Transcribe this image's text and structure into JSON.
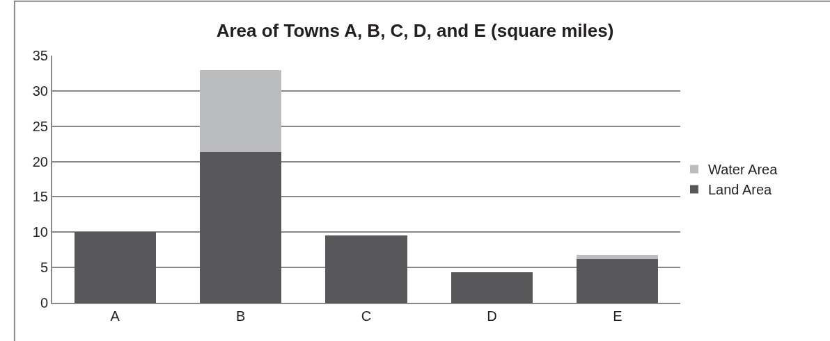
{
  "chart_data": {
    "type": "bar",
    "title": "Area of Towns A, B, C, D, and E (square miles)",
    "categories": [
      "A",
      "B",
      "C",
      "D",
      "E"
    ],
    "stacked": true,
    "series": [
      {
        "name": "Land Area",
        "color": "#58585a",
        "values": [
          10.0,
          21.3,
          9.5,
          4.3,
          6.2
        ]
      },
      {
        "name": "Water Area",
        "color": "#bbbcbe",
        "values": [
          0,
          11.6,
          0,
          0,
          0.6
        ]
      }
    ],
    "ylim": [
      0,
      35
    ],
    "yticks": [
      0,
      5,
      10,
      15,
      20,
      25,
      30,
      35
    ],
    "grid": "y",
    "legend": "right"
  }
}
